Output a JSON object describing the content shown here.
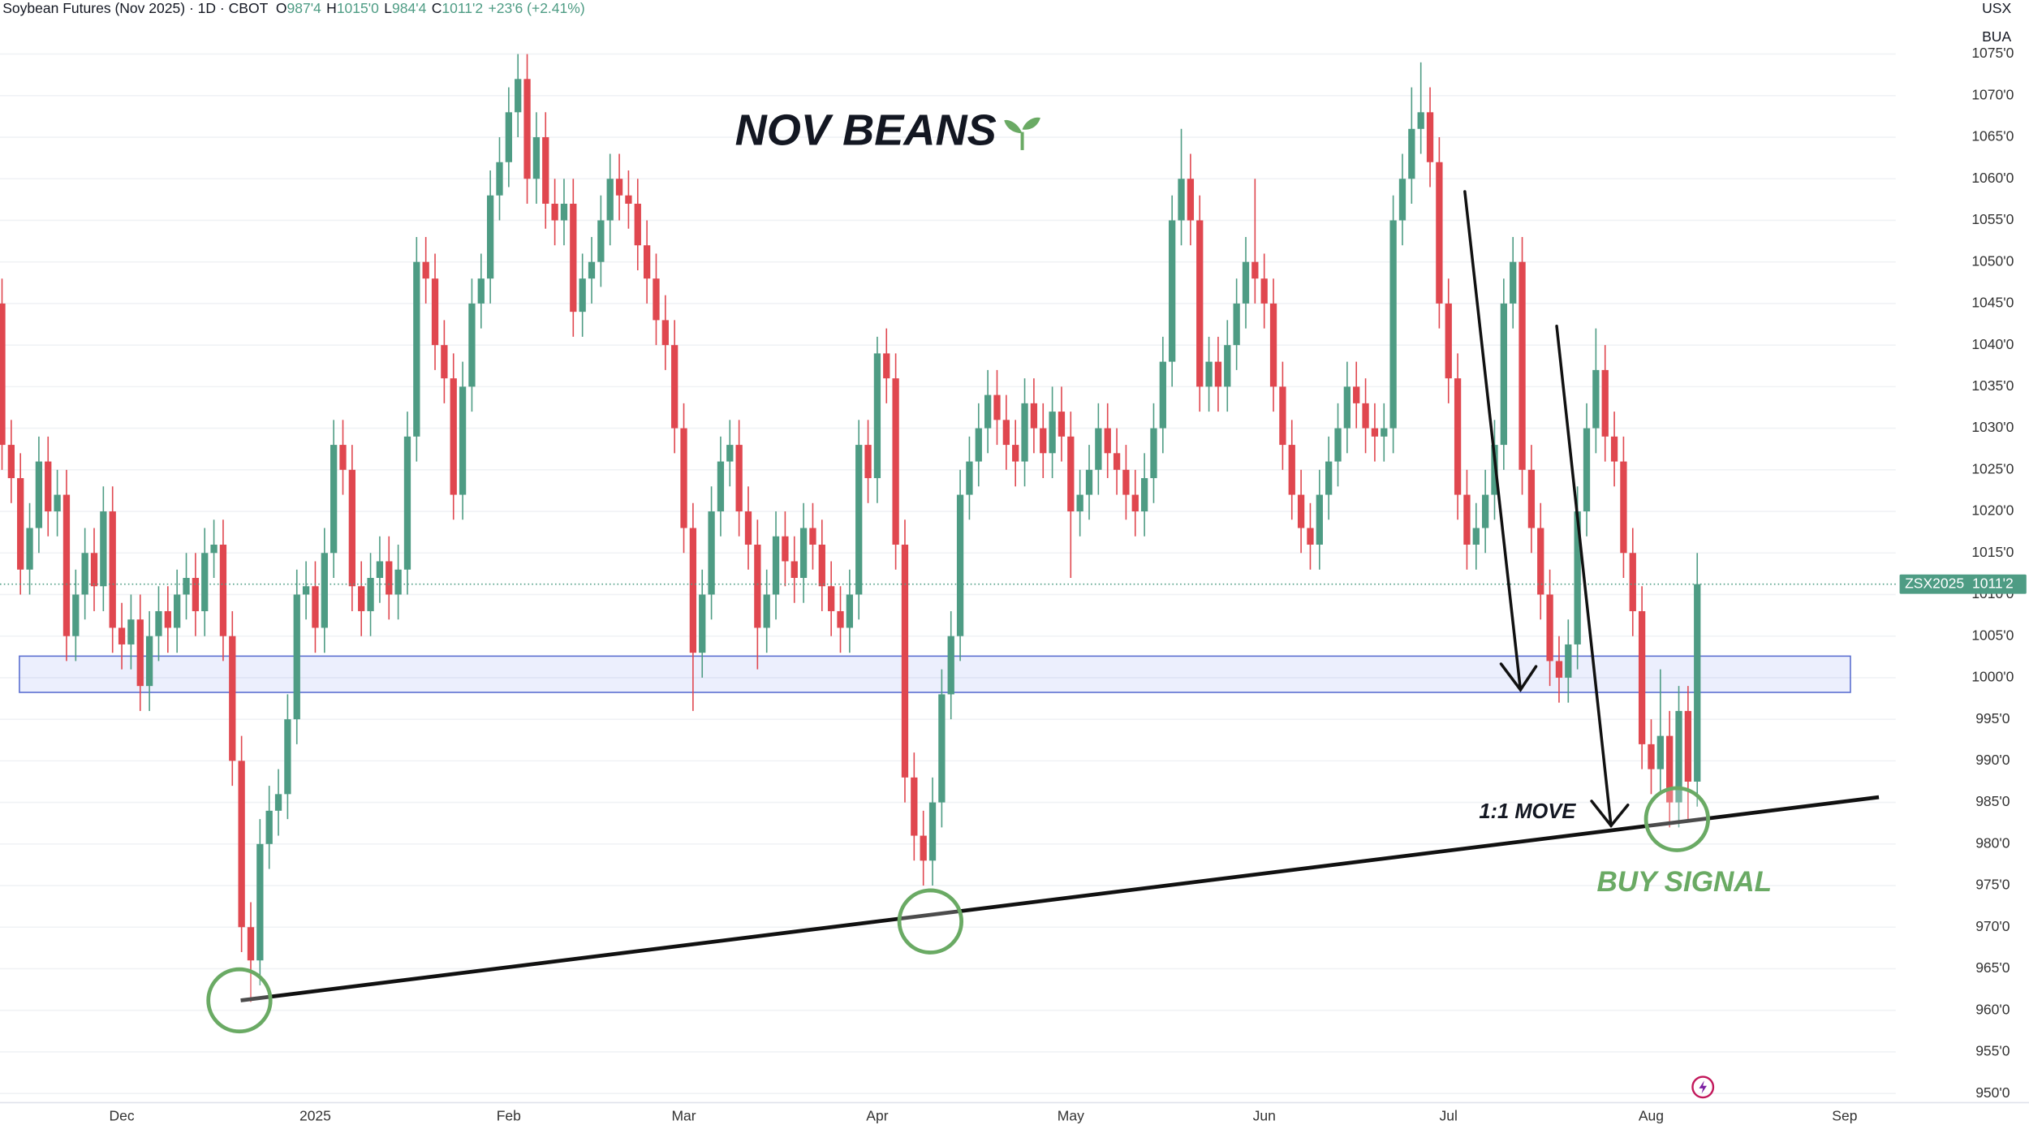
{
  "chart_data": {
    "type": "candlestick",
    "title": "NOV BEANS",
    "header": {
      "symbol": "Soybean Futures (Nov 2025) · 1D · CBOT",
      "ohlc": [
        {
          "key": "O",
          "value": "987'4"
        },
        {
          "key": "H",
          "value": "1015'0"
        },
        {
          "key": "L",
          "value": "984'4"
        },
        {
          "key": "C",
          "value": "1011'2"
        }
      ],
      "change": "+23'6 (+2.41%)"
    },
    "currency": "USX",
    "unit": "BUA",
    "annotations": [
      "1:1 MOVE",
      "BUY SIGNAL"
    ],
    "last_price_label": {
      "symbol": "ZSX2025",
      "value": "1011'2"
    },
    "up_color": "#4e9c84",
    "down_color": "#e0474f",
    "grid": true,
    "ylim": [
      948.9,
      1081.5
    ],
    "yticks": [
      {
        "value": 950,
        "label": "950'0"
      },
      {
        "value": 955,
        "label": "955'0"
      },
      {
        "value": 960,
        "label": "960'0"
      },
      {
        "value": 965,
        "label": "965'0"
      },
      {
        "value": 970,
        "label": "970'0"
      },
      {
        "value": 975,
        "label": "975'0"
      },
      {
        "value": 980,
        "label": "980'0"
      },
      {
        "value": 985,
        "label": "985'0"
      },
      {
        "value": 990,
        "label": "990'0"
      },
      {
        "value": 995,
        "label": "995'0"
      },
      {
        "value": 1000,
        "label": "1000'0"
      },
      {
        "value": 1005,
        "label": "1005'0"
      },
      {
        "value": 1010,
        "label": "1010'0"
      },
      {
        "value": 1015,
        "label": "1015'0"
      },
      {
        "value": 1020,
        "label": "1020'0"
      },
      {
        "value": 1025,
        "label": "1025'0"
      },
      {
        "value": 1030,
        "label": "1030'0"
      },
      {
        "value": 1035,
        "label": "1035'0"
      },
      {
        "value": 1040,
        "label": "1040'0"
      },
      {
        "value": 1045,
        "label": "1045'0"
      },
      {
        "value": 1050,
        "label": "1050'0"
      },
      {
        "value": 1055,
        "label": "1055'0"
      },
      {
        "value": 1060,
        "label": "1060'0"
      },
      {
        "value": 1065,
        "label": "1065'0"
      },
      {
        "value": 1070,
        "label": "1070'0"
      },
      {
        "value": 1075,
        "label": "1075'0"
      }
    ],
    "categories": [
      null,
      null,
      null,
      null,
      null,
      null,
      null,
      null,
      null,
      null,
      null,
      null,
      null,
      "Dec",
      null,
      null,
      null,
      null,
      null,
      null,
      null,
      null,
      null,
      null,
      null,
      null,
      null,
      null,
      null,
      null,
      null,
      null,
      null,
      null,
      "2025",
      null,
      null,
      null,
      null,
      null,
      null,
      null,
      null,
      null,
      null,
      null,
      null,
      null,
      null,
      null,
      null,
      null,
      null,
      null,
      null,
      "Feb",
      null,
      null,
      null,
      null,
      null,
      null,
      null,
      null,
      null,
      null,
      null,
      null,
      null,
      null,
      null,
      null,
      null,
      null,
      "Mar",
      null,
      null,
      null,
      null,
      null,
      null,
      null,
      null,
      null,
      null,
      null,
      null,
      null,
      null,
      null,
      null,
      null,
      null,
      null,
      null,
      "Apr",
      null,
      null,
      null,
      null,
      null,
      null,
      null,
      null,
      null,
      null,
      null,
      null,
      null,
      null,
      null,
      null,
      null,
      null,
      null,
      null,
      "May",
      null,
      null,
      null,
      null,
      null,
      null,
      null,
      null,
      null,
      null,
      null,
      null,
      null,
      null,
      null,
      null,
      null,
      null,
      null,
      null,
      "Jun",
      null,
      null,
      null,
      null,
      null,
      null,
      null,
      null,
      null,
      null,
      null,
      null,
      null,
      null,
      null,
      null,
      null,
      null,
      null,
      "Jul",
      null,
      null,
      null,
      null,
      null,
      null,
      null,
      null,
      null,
      null,
      null,
      null,
      null,
      null,
      null,
      null,
      null,
      null,
      null,
      null,
      null,
      "Aug",
      null,
      null,
      null,
      null,
      null,
      null,
      null,
      null,
      null,
      null,
      null,
      null,
      null,
      null,
      null,
      null,
      null,
      null,
      null,
      null,
      "Sep",
      null,
      null,
      null,
      null,
      null
    ],
    "open": [
      1045,
      1028,
      1024,
      1013,
      1018,
      1026,
      1020,
      1022,
      1005,
      1010,
      1015,
      1011,
      1020,
      1006,
      1004,
      1007,
      999,
      1005,
      1008,
      1006,
      1010,
      1012,
      1008,
      1015,
      1016,
      1005,
      990,
      970,
      966,
      980,
      984,
      986,
      995,
      1010,
      1011,
      1006,
      1015,
      1028,
      1025,
      1011,
      1008,
      1012,
      1014,
      1010,
      1013,
      1029,
      1050,
      1048,
      1040,
      1036,
      1022,
      1035,
      1045,
      1048,
      1058,
      1062,
      1068,
      1072,
      1060,
      1065,
      1057,
      1055,
      1057,
      1044,
      1048,
      1050,
      1055,
      1060,
      1058,
      1057,
      1052,
      1048,
      1043,
      1040,
      1030,
      1018,
      1003,
      1010,
      1020,
      1026,
      1028,
      1020,
      1016,
      1006,
      1010,
      1017,
      1014,
      1012,
      1018,
      1016,
      1011,
      1008,
      1006,
      1010,
      1028,
      1024,
      1039,
      1036,
      1016,
      988,
      981,
      978,
      985,
      998,
      1005,
      1022,
      1026,
      1030,
      1034,
      1031,
      1028,
      1026,
      1033,
      1030,
      1027,
      1032,
      1029,
      1020,
      1022,
      1025,
      1030,
      1027,
      1025,
      1022,
      1020,
      1024,
      1030,
      1038,
      1055,
      1060,
      1055,
      1035,
      1038,
      1035,
      1040,
      1045,
      1050,
      1048,
      1045,
      1035,
      1028,
      1022,
      1018,
      1016,
      1022,
      1026,
      1030,
      1035,
      1033,
      1030,
      1029,
      1030,
      1055,
      1060,
      1066,
      1068,
      1062,
      1045,
      1036,
      1022,
      1016,
      1018,
      1022,
      1028,
      1045,
      1050,
      1025,
      1018,
      1010,
      1002,
      1000,
      1004,
      1020,
      1030,
      1037,
      1029,
      1026,
      1015,
      1008,
      992,
      989,
      993,
      985,
      996,
      987.5,
      null,
      null,
      null,
      null,
      null,
      null,
      null,
      null,
      null,
      null,
      null,
      null,
      null,
      null,
      null,
      null,
      null,
      null,
      null,
      null,
      null
    ],
    "high": [
      1048,
      1031,
      1027,
      1021,
      1029,
      1029,
      1025,
      1025,
      1013,
      1018,
      1018,
      1023,
      1023,
      1009,
      1010,
      1010,
      1008,
      1011,
      1011,
      1013,
      1015,
      1015,
      1018,
      1019,
      1019,
      1008,
      993,
      973,
      983,
      987,
      989,
      998,
      1013,
      1014,
      1014,
      1018,
      1031,
      1031,
      1028,
      1014,
      1015,
      1017,
      1017,
      1016,
      1032,
      1053,
      1053,
      1051,
      1043,
      1039,
      1038,
      1048,
      1051,
      1061,
      1065,
      1071,
      1075,
      1075,
      1068,
      1068,
      1060,
      1060,
      1060,
      1051,
      1053,
      1058,
      1063,
      1063,
      1061,
      1060,
      1055,
      1051,
      1046,
      1043,
      1033,
      1021,
      1013,
      1023,
      1029,
      1031,
      1031,
      1023,
      1019,
      1013,
      1020,
      1020,
      1017,
      1021,
      1021,
      1019,
      1014,
      1011,
      1013,
      1031,
      1031,
      1041,
      1042,
      1039,
      1019,
      991,
      984,
      988,
      1001,
      1008,
      1025,
      1029,
      1033,
      1037,
      1037,
      1034,
      1031,
      1036,
      1036,
      1033,
      1035,
      1035,
      1032,
      1025,
      1028,
      1033,
      1033,
      1030,
      1028,
      1025,
      1027,
      1033,
      1041,
      1058,
      1066,
      1063,
      1058,
      1041,
      1041,
      1043,
      1048,
      1053,
      1060,
      1051,
      1048,
      1038,
      1031,
      1025,
      1021,
      1025,
      1029,
      1033,
      1038,
      1038,
      1036,
      1033,
      1033,
      1058,
      1063,
      1071,
      1074,
      1071,
      1065,
      1048,
      1039,
      1025,
      1021,
      1025,
      1031,
      1048,
      1053,
      1053,
      1028,
      1021,
      1013,
      1005,
      1007,
      1023,
      1033,
      1042,
      1040,
      1032,
      1029,
      1018,
      1011,
      995,
      1001,
      996,
      999,
      999,
      1015,
      null,
      null,
      null,
      null,
      null,
      null,
      null,
      null,
      null,
      null,
      null,
      null,
      null,
      null,
      null,
      null,
      null,
      null,
      null,
      null,
      null
    ],
    "low": [
      1025,
      1021,
      1010,
      1010,
      1015,
      1017,
      1017,
      1002,
      1002,
      1007,
      1008,
      1008,
      1003,
      1001,
      1001,
      996,
      996,
      1002,
      1003,
      1003,
      1007,
      1005,
      1005,
      1012,
      1002,
      987,
      967,
      961,
      963,
      977,
      981,
      983,
      992,
      1007,
      1003,
      1003,
      1012,
      1022,
      1008,
      1005,
      1005,
      1009,
      1007,
      1007,
      1010,
      1026,
      1045,
      1037,
      1033,
      1019,
      1019,
      1032,
      1042,
      1045,
      1055,
      1059,
      1065,
      1057,
      1057,
      1054,
      1052,
      1052,
      1041,
      1041,
      1045,
      1047,
      1052,
      1055,
      1054,
      1049,
      1045,
      1040,
      1037,
      1027,
      1015,
      996,
      1000,
      1007,
      1017,
      1023,
      1017,
      1013,
      1001,
      1003,
      1007,
      1011,
      1009,
      1009,
      1013,
      1008,
      1005,
      1003,
      1003,
      1007,
      1021,
      1021,
      1033,
      1013,
      985,
      978,
      975,
      975,
      982,
      995,
      1002,
      1019,
      1023,
      1027,
      1028,
      1025,
      1023,
      1023,
      1027,
      1024,
      1024,
      1026,
      1012,
      1017,
      1019,
      1022,
      1024,
      1022,
      1019,
      1017,
      1017,
      1021,
      1027,
      1035,
      1052,
      1052,
      1032,
      1032,
      1032,
      1032,
      1037,
      1042,
      1045,
      1042,
      1032,
      1025,
      1019,
      1015,
      1013,
      1013,
      1019,
      1023,
      1027,
      1030,
      1027,
      1026,
      1026,
      1027,
      1052,
      1057,
      1063,
      1059,
      1042,
      1033,
      1019,
      1013,
      1013,
      1015,
      1019,
      1025,
      1042,
      1022,
      1015,
      1007,
      999,
      997,
      997,
      1001,
      1017,
      1027,
      1026,
      1023,
      1012,
      1005,
      989,
      986,
      986,
      982,
      982,
      983,
      984.5,
      null,
      null,
      null,
      null,
      null,
      null,
      null,
      null,
      null,
      null,
      null,
      null,
      null,
      null,
      null,
      null,
      null,
      null,
      null,
      null,
      null
    ],
    "close": [
      1028,
      1024,
      1013,
      1018,
      1026,
      1020,
      1022,
      1005,
      1010,
      1015,
      1011,
      1020,
      1006,
      1004,
      1007,
      999,
      1005,
      1008,
      1006,
      1010,
      1012,
      1008,
      1015,
      1016,
      1005,
      990,
      970,
      966,
      980,
      984,
      986,
      995,
      1010,
      1011,
      1006,
      1015,
      1028,
      1025,
      1011,
      1008,
      1012,
      1014,
      1010,
      1013,
      1029,
      1050,
      1048,
      1040,
      1036,
      1022,
      1035,
      1045,
      1048,
      1058,
      1062,
      1068,
      1072,
      1060,
      1065,
      1057,
      1055,
      1057,
      1044,
      1048,
      1050,
      1055,
      1060,
      1058,
      1057,
      1052,
      1048,
      1043,
      1040,
      1030,
      1018,
      1003,
      1010,
      1020,
      1026,
      1028,
      1020,
      1016,
      1006,
      1010,
      1017,
      1014,
      1012,
      1018,
      1016,
      1011,
      1008,
      1006,
      1010,
      1028,
      1024,
      1039,
      1036,
      1016,
      988,
      981,
      978,
      985,
      998,
      1005,
      1022,
      1026,
      1030,
      1034,
      1031,
      1028,
      1026,
      1033,
      1030,
      1027,
      1032,
      1029,
      1020,
      1022,
      1025,
      1030,
      1027,
      1025,
      1022,
      1020,
      1024,
      1030,
      1038,
      1055,
      1060,
      1055,
      1035,
      1038,
      1035,
      1040,
      1045,
      1050,
      1048,
      1045,
      1035,
      1028,
      1022,
      1018,
      1016,
      1022,
      1026,
      1030,
      1035,
      1033,
      1030,
      1029,
      1030,
      1055,
      1060,
      1066,
      1068,
      1062,
      1045,
      1036,
      1022,
      1016,
      1018,
      1022,
      1028,
      1045,
      1050,
      1025,
      1018,
      1010,
      1002,
      1000,
      1004,
      1020,
      1030,
      1037,
      1029,
      1026,
      1015,
      1008,
      992,
      989,
      993,
      985,
      996,
      987.5,
      1011.25,
      null,
      null,
      null,
      null,
      null,
      null,
      null,
      null,
      null,
      null,
      null,
      null,
      null,
      null,
      null,
      null,
      null,
      null,
      null,
      null,
      null
    ]
  }
}
